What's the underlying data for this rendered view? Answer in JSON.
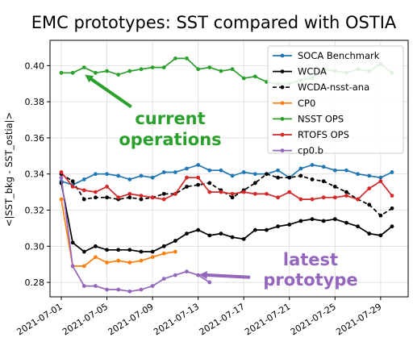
{
  "chart_data": {
    "type": "line",
    "title": "EMC prototypes: SST  compared with OSTIA",
    "ylabel": "<|SST_bkg - SST_ostia|>",
    "xlabel": "",
    "x": [
      "2021-07-01",
      "2021-07-02",
      "2021-07-03",
      "2021-07-04",
      "2021-07-05",
      "2021-07-06",
      "2021-07-07",
      "2021-07-08",
      "2021-07-09",
      "2021-07-10",
      "2021-07-11",
      "2021-07-12",
      "2021-07-13",
      "2021-07-14",
      "2021-07-15",
      "2021-07-16",
      "2021-07-17",
      "2021-07-18",
      "2021-07-19",
      "2021-07-20",
      "2021-07-21",
      "2021-07-22",
      "2021-07-23",
      "2021-07-24",
      "2021-07-25",
      "2021-07-26",
      "2021-07-27",
      "2021-07-28",
      "2021-07-29",
      "2021-07-30"
    ],
    "x_ticks": [
      "2021-07-01",
      "2021-07-05",
      "2021-07-09",
      "2021-07-13",
      "2021-07-17",
      "2021-07-21",
      "2021-07-25",
      "2021-07-29"
    ],
    "ylim": [
      0.272,
      0.414
    ],
    "y_ticks": [
      0.28,
      0.3,
      0.32,
      0.34,
      0.36,
      0.38,
      0.4
    ],
    "y_tick_labels": [
      "0.28",
      "0.30",
      "0.32",
      "0.34",
      "0.36",
      "0.38",
      "0.40"
    ],
    "grid": true,
    "legend_position": "top-right",
    "series": [
      {
        "name": "SOCA Benchmark",
        "color": "#1f77b4",
        "dash": "solid",
        "values": [
          0.336,
          0.334,
          0.337,
          0.34,
          0.34,
          0.339,
          0.337,
          0.339,
          0.338,
          0.341,
          0.341,
          0.343,
          0.345,
          0.342,
          0.342,
          0.339,
          0.341,
          0.34,
          0.34,
          0.342,
          0.338,
          0.343,
          0.345,
          0.344,
          0.342,
          0.342,
          0.34,
          0.339,
          0.338,
          0.341
        ]
      },
      {
        "name": "WCDA",
        "color": "#000000",
        "dash": "solid",
        "values": [
          0.335,
          0.302,
          0.297,
          0.3,
          0.298,
          0.298,
          0.298,
          0.297,
          0.297,
          0.3,
          0.303,
          0.307,
          0.309,
          0.306,
          0.307,
          0.305,
          0.304,
          0.309,
          0.309,
          0.311,
          0.312,
          0.314,
          0.315,
          0.314,
          0.315,
          0.313,
          0.311,
          0.307,
          0.306,
          0.311
        ]
      },
      {
        "name": "WCDA-nsst-ana",
        "color": "#000000",
        "dash": "dashed",
        "values": [
          0.34,
          0.336,
          0.326,
          0.327,
          0.327,
          0.326,
          0.327,
          0.326,
          0.327,
          0.329,
          0.329,
          0.333,
          0.334,
          0.335,
          0.331,
          0.327,
          0.331,
          0.335,
          0.34,
          0.338,
          0.338,
          0.339,
          0.337,
          0.336,
          0.333,
          0.33,
          0.326,
          0.323,
          0.317,
          0.321
        ]
      },
      {
        "name": "CP0",
        "color": "#ff7f0e",
        "dash": "solid",
        "values": [
          0.326,
          0.289,
          0.289,
          0.294,
          0.291,
          0.292,
          0.291,
          0.292,
          0.294,
          0.296,
          0.297,
          null,
          null,
          null,
          null,
          null,
          null,
          null,
          null,
          null,
          null,
          null,
          null,
          null,
          null,
          null,
          null,
          null,
          null,
          null
        ]
      },
      {
        "name": "NSST OPS",
        "color": "#2ca02c",
        "dash": "solid",
        "values": [
          0.396,
          0.396,
          0.399,
          0.396,
          0.397,
          0.395,
          0.397,
          0.398,
          0.399,
          0.399,
          0.404,
          0.404,
          0.398,
          0.399,
          0.397,
          0.398,
          0.393,
          0.394,
          0.391,
          0.39,
          0.39,
          0.392,
          0.393,
          0.398,
          0.397,
          0.396,
          0.398,
          0.397,
          0.401,
          0.396
        ]
      },
      {
        "name": "RTOFS OPS",
        "color": "#d62728",
        "dash": "solid",
        "values": [
          0.341,
          0.333,
          0.331,
          0.33,
          0.333,
          0.327,
          0.329,
          0.328,
          0.327,
          0.326,
          0.329,
          0.338,
          0.338,
          0.33,
          0.33,
          0.329,
          0.33,
          0.329,
          0.329,
          0.327,
          0.33,
          0.326,
          0.326,
          0.327,
          0.327,
          0.328,
          0.326,
          0.332,
          0.336,
          0.328
        ]
      },
      {
        "name": "cp0.b",
        "color": "#9467bd",
        "dash": "solid",
        "values": [
          0.338,
          0.289,
          0.278,
          0.278,
          0.276,
          0.276,
          0.275,
          0.276,
          0.278,
          0.282,
          0.284,
          0.286,
          0.284,
          0.28,
          null,
          null,
          null,
          null,
          null,
          null,
          null,
          null,
          null,
          null,
          null,
          null,
          null,
          null,
          null,
          null
        ]
      }
    ],
    "annotations": [
      {
        "text_lines": [
          "current",
          "operations"
        ],
        "color": "#2ca02c",
        "arrow_to": [
          "2021-07-03",
          0.3955
        ],
        "arrow_from": [
          "2021-07-06",
          0.387
        ]
      },
      {
        "text_lines": [
          "latest",
          "prototype"
        ],
        "color": "#9467bd",
        "arrow_to": [
          "2021-07-13",
          0.2855
        ],
        "arrow_from": [
          "2021-07-16",
          0.2855
        ]
      }
    ]
  }
}
